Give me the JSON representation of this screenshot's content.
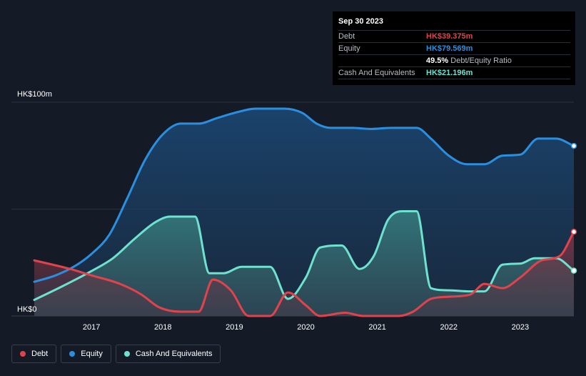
{
  "tooltip": {
    "date": "Sep 30 2023",
    "debt_label": "Debt",
    "debt_value": "HK$39.375m",
    "equity_label": "Equity",
    "equity_value": "HK$79.569m",
    "ratio_value": "49.5%",
    "ratio_label": "Debt/Equity Ratio",
    "cash_label": "Cash And Equivalents",
    "cash_value": "HK$21.196m"
  },
  "legend": {
    "debt": "Debt",
    "equity": "Equity",
    "cash": "Cash And Equivalents"
  },
  "colors": {
    "debt": "#e0434c",
    "equity": "#2b8fe0",
    "cash": "#6ee2cf",
    "background": "#151b26"
  },
  "chart_data": {
    "type": "area",
    "y_unit_prefix": "HK$",
    "y_ticks": [
      {
        "value": 0,
        "label": "HK$0"
      },
      {
        "value": 100,
        "label": "HK$100m"
      }
    ],
    "ylim": [
      0,
      100
    ],
    "xlim": [
      2016.2,
      2023.75
    ],
    "x_ticks": [
      2017,
      2018,
      2019,
      2020,
      2021,
      2022,
      2023
    ],
    "series": [
      {
        "name": "Debt",
        "key": "debt",
        "points": [
          [
            2016.2,
            26
          ],
          [
            2016.7,
            22
          ],
          [
            2017.0,
            19
          ],
          [
            2017.4,
            15
          ],
          [
            2017.7,
            10
          ],
          [
            2017.95,
            4
          ],
          [
            2018.25,
            2
          ],
          [
            2018.5,
            2
          ],
          [
            2018.7,
            17
          ],
          [
            2018.95,
            12
          ],
          [
            2019.2,
            0
          ],
          [
            2019.5,
            0
          ],
          [
            2019.75,
            11
          ],
          [
            2020.0,
            5
          ],
          [
            2020.2,
            0
          ],
          [
            2020.55,
            1.5
          ],
          [
            2020.8,
            0
          ],
          [
            2021.3,
            0
          ],
          [
            2021.5,
            2
          ],
          [
            2021.75,
            8
          ],
          [
            2022.0,
            9
          ],
          [
            2022.3,
            10
          ],
          [
            2022.5,
            15
          ],
          [
            2022.75,
            13
          ],
          [
            2023.0,
            18
          ],
          [
            2023.3,
            26
          ],
          [
            2023.55,
            28
          ],
          [
            2023.75,
            39.375
          ]
        ]
      },
      {
        "name": "Equity",
        "key": "equity",
        "points": [
          [
            2016.2,
            16
          ],
          [
            2016.5,
            19
          ],
          [
            2016.8,
            24
          ],
          [
            2017.0,
            29
          ],
          [
            2017.25,
            38
          ],
          [
            2017.5,
            55
          ],
          [
            2017.75,
            73
          ],
          [
            2018.0,
            85
          ],
          [
            2018.25,
            90
          ],
          [
            2018.5,
            90
          ],
          [
            2018.75,
            92.5
          ],
          [
            2019.0,
            95
          ],
          [
            2019.3,
            97
          ],
          [
            2019.7,
            97
          ],
          [
            2019.95,
            95
          ],
          [
            2020.15,
            90
          ],
          [
            2020.35,
            88
          ],
          [
            2020.65,
            88
          ],
          [
            2020.9,
            87.5
          ],
          [
            2021.2,
            88
          ],
          [
            2021.55,
            88
          ],
          [
            2021.75,
            83
          ],
          [
            2022.0,
            75
          ],
          [
            2022.25,
            71
          ],
          [
            2022.5,
            71
          ],
          [
            2022.75,
            75
          ],
          [
            2023.0,
            75.5
          ],
          [
            2023.25,
            83
          ],
          [
            2023.5,
            83
          ],
          [
            2023.75,
            79.569
          ]
        ]
      },
      {
        "name": "Cash And Equivalents",
        "key": "cash",
        "points": [
          [
            2016.2,
            7.5
          ],
          [
            2016.6,
            14
          ],
          [
            2017.0,
            21
          ],
          [
            2017.3,
            27
          ],
          [
            2017.6,
            36
          ],
          [
            2017.9,
            44
          ],
          [
            2018.1,
            46.5
          ],
          [
            2018.45,
            46.5
          ],
          [
            2018.65,
            20
          ],
          [
            2018.85,
            20
          ],
          [
            2019.1,
            23
          ],
          [
            2019.5,
            23
          ],
          [
            2019.75,
            8
          ],
          [
            2020.0,
            18
          ],
          [
            2020.2,
            32
          ],
          [
            2020.5,
            33
          ],
          [
            2020.75,
            22
          ],
          [
            2020.95,
            28
          ],
          [
            2021.15,
            45
          ],
          [
            2021.35,
            49
          ],
          [
            2021.55,
            49
          ],
          [
            2021.75,
            13
          ],
          [
            2022.0,
            12
          ],
          [
            2022.3,
            11.5
          ],
          [
            2022.5,
            11.5
          ],
          [
            2022.75,
            24
          ],
          [
            2023.0,
            24.5
          ],
          [
            2023.2,
            27
          ],
          [
            2023.5,
            27
          ],
          [
            2023.75,
            21.196
          ]
        ]
      }
    ]
  }
}
